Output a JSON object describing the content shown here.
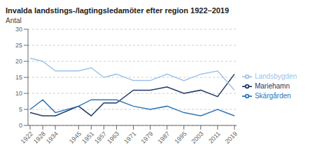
{
  "chart_data": {
    "type": "line",
    "title": "Invalda landstings-/lagtingsledamöter efter region 1922–2019",
    "ylabel": "Antal",
    "x": [
      1922,
      1928,
      1934,
      1945,
      1951,
      1957,
      1963,
      1971,
      1979,
      1987,
      1995,
      2003,
      2011,
      2019
    ],
    "series": [
      {
        "name": "Mariehamn",
        "color": "#1f3864",
        "values": [
          4,
          3,
          3,
          6,
          3,
          7,
          7,
          11,
          11,
          12,
          10,
          11,
          9,
          16
        ]
      },
      {
        "name": "Landsbygden",
        "color": "#9dc3e6",
        "values": [
          21,
          20,
          17,
          17,
          18,
          15,
          16,
          14,
          14,
          16,
          14,
          16,
          17,
          11
        ]
      },
      {
        "name": "Skärgården",
        "color": "#2e75b6",
        "values": [
          5,
          8,
          4,
          6,
          8,
          8,
          8,
          6,
          5,
          6,
          4,
          3,
          5,
          3
        ]
      }
    ],
    "xlim": [
      1921,
      2020
    ],
    "xticks": [
      1922,
      1928,
      1934,
      1945,
      1951,
      1957,
      1963,
      1971,
      1979,
      1987,
      1995,
      2003,
      2011,
      2019
    ],
    "ylim": [
      0,
      30
    ],
    "yticks": [
      0,
      5,
      10,
      15,
      20,
      25,
      30
    ],
    "grid": true,
    "legend": "right"
  }
}
